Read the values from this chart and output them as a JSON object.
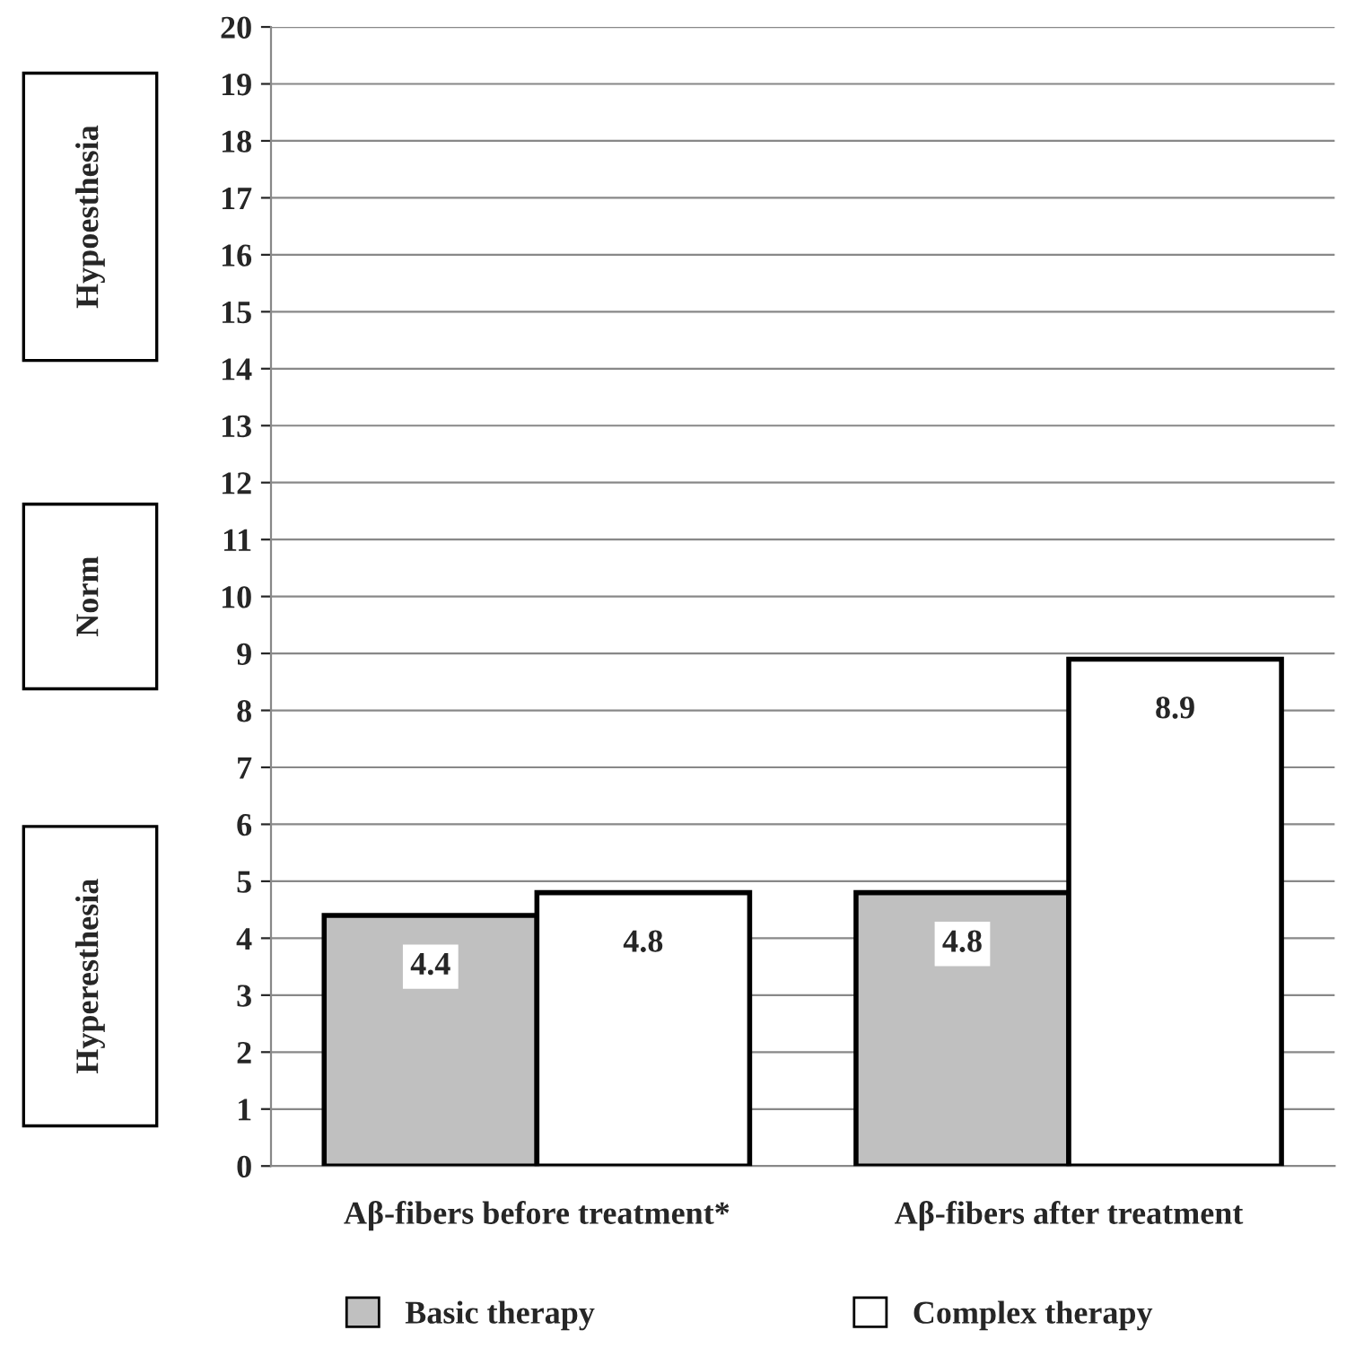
{
  "chart_data": {
    "type": "bar",
    "categories": [
      "Aβ-fibers before treatment*",
      "Aβ-fibers after treatment"
    ],
    "series": [
      {
        "name": "Basic therapy",
        "color": "#c0c0c0",
        "values": [
          4.4,
          4.8
        ]
      },
      {
        "name": "Complex therapy",
        "color": "#ffffff",
        "values": [
          4.8,
          8.9
        ]
      }
    ],
    "ylim": [
      0,
      20
    ],
    "yticks": [
      0,
      1,
      2,
      3,
      4,
      5,
      6,
      7,
      8,
      9,
      10,
      11,
      12,
      13,
      14,
      15,
      16,
      17,
      18,
      19,
      20
    ],
    "grid": "y",
    "legend": "bottom",
    "data_labels": true,
    "annotations": [
      "Hypoesthesia",
      "Norm",
      "Hyperesthesia"
    ]
  }
}
